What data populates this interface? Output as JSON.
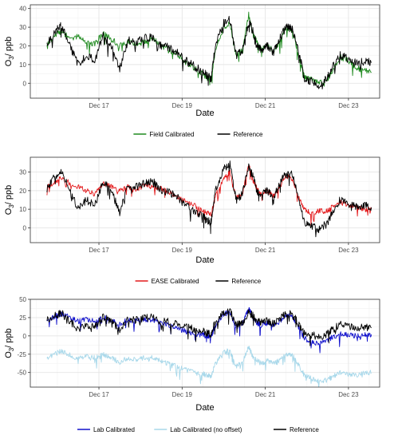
{
  "chart_data": [
    {
      "type": "line",
      "title": "",
      "xlabel": "Date",
      "ylabel": "O3/ ppb",
      "ylabel_parts": {
        "main": "O",
        "sub": "3",
        "rest": "/ ppb"
      },
      "x_ticks": [
        {
          "day": 17,
          "label": "Dec 17"
        },
        {
          "day": 19,
          "label": "Dec 19"
        },
        {
          "day": 21,
          "label": "Dec 21"
        },
        {
          "day": 23,
          "label": "Dec 23"
        }
      ],
      "xlim": [
        15.35,
        23.75
      ],
      "ylim": [
        -8,
        42
      ],
      "y_ticks": [
        0,
        10,
        20,
        30,
        40
      ],
      "grid": true,
      "legend": "bottom-center",
      "series": [
        {
          "name": "Field Calibrated",
          "color": "#1f8a1f",
          "x": [
            15.75,
            15.95,
            16.1,
            16.3,
            16.5,
            16.7,
            16.9,
            17.1,
            17.3,
            17.5,
            17.7,
            17.9,
            18.1,
            18.3,
            18.5,
            18.7,
            18.9,
            19.1,
            19.3,
            19.5,
            19.6,
            19.7,
            19.8,
            20.0,
            20.15,
            20.3,
            20.45,
            20.6,
            20.7,
            20.8,
            20.9,
            21.05,
            21.2,
            21.35,
            21.5,
            21.65,
            21.8,
            21.95,
            22.1,
            22.3,
            22.5,
            22.6,
            22.8,
            23.0,
            23.2,
            23.4,
            23.55
          ],
          "y": [
            20,
            26,
            28,
            24,
            25,
            22,
            21,
            27,
            24,
            20,
            22,
            21,
            22,
            24,
            20,
            18,
            15,
            11,
            8,
            5,
            3,
            2,
            18,
            30,
            32,
            14,
            18,
            37,
            26,
            22,
            18,
            20,
            17,
            22,
            30,
            28,
            15,
            3,
            2,
            0,
            2,
            6,
            14,
            12,
            8,
            7,
            6
          ]
        },
        {
          "name": "Reference",
          "color": "#000000",
          "x": [
            15.75,
            15.95,
            16.1,
            16.3,
            16.5,
            16.7,
            16.9,
            17.1,
            17.3,
            17.5,
            17.7,
            17.9,
            18.1,
            18.3,
            18.5,
            18.7,
            18.9,
            19.1,
            19.3,
            19.5,
            19.6,
            19.7,
            19.8,
            20.0,
            20.15,
            20.3,
            20.45,
            20.6,
            20.7,
            20.8,
            20.9,
            21.05,
            21.2,
            21.35,
            21.5,
            21.65,
            21.8,
            21.95,
            22.1,
            22.3,
            22.5,
            22.6,
            22.8,
            23.0,
            23.2,
            23.4,
            23.55
          ],
          "y": [
            21,
            28,
            31,
            20,
            10,
            15,
            12,
            25,
            20,
            8,
            23,
            22,
            24,
            25,
            20,
            19,
            16,
            12,
            9,
            6,
            4,
            3,
            20,
            32,
            34,
            15,
            18,
            33,
            28,
            20,
            18,
            20,
            16,
            24,
            30,
            29,
            17,
            2,
            1,
            -1,
            3,
            8,
            15,
            13,
            11,
            12,
            11
          ]
        }
      ]
    },
    {
      "type": "line",
      "title": "",
      "xlabel": "Date",
      "ylabel": "O3/ ppb",
      "ylabel_parts": {
        "main": "O",
        "sub": "3",
        "rest": "/ ppb"
      },
      "x_ticks": [
        {
          "day": 17,
          "label": "Dec 17"
        },
        {
          "day": 19,
          "label": "Dec 19"
        },
        {
          "day": 21,
          "label": "Dec 21"
        },
        {
          "day": 23,
          "label": "Dec 23"
        }
      ],
      "xlim": [
        15.35,
        23.75
      ],
      "ylim": [
        -8,
        38
      ],
      "y_ticks": [
        0,
        10,
        20,
        30
      ],
      "grid": true,
      "legend": "bottom-center",
      "series": [
        {
          "name": "EASE Calibrated",
          "color": "#e31a1c",
          "x": [
            15.75,
            15.95,
            16.1,
            16.3,
            16.5,
            16.7,
            16.9,
            17.1,
            17.3,
            17.5,
            17.7,
            17.9,
            18.1,
            18.3,
            18.5,
            18.7,
            18.9,
            19.1,
            19.3,
            19.5,
            19.6,
            19.7,
            19.8,
            20.0,
            20.15,
            20.3,
            20.45,
            20.6,
            20.7,
            20.8,
            20.9,
            21.05,
            21.2,
            21.35,
            21.5,
            21.65,
            21.8,
            21.95,
            22.1,
            22.3,
            22.5,
            22.6,
            22.8,
            23.0,
            23.2,
            23.4,
            23.55
          ],
          "y": [
            22,
            25,
            27,
            24,
            22,
            20,
            18,
            24,
            22,
            20,
            22,
            20,
            23,
            22,
            21,
            19,
            16,
            14,
            12,
            9,
            8,
            7,
            17,
            27,
            30,
            16,
            18,
            34,
            26,
            21,
            18,
            20,
            17,
            22,
            28,
            26,
            16,
            10,
            8,
            9,
            9,
            11,
            14,
            12,
            11,
            10,
            10
          ]
        },
        {
          "name": "Reference",
          "color": "#000000",
          "x": [
            15.75,
            15.95,
            16.1,
            16.3,
            16.5,
            16.7,
            16.9,
            17.1,
            17.3,
            17.5,
            17.7,
            17.9,
            18.1,
            18.3,
            18.5,
            18.7,
            18.9,
            19.1,
            19.3,
            19.5,
            19.6,
            19.7,
            19.8,
            20.0,
            20.15,
            20.3,
            20.45,
            20.6,
            20.7,
            20.8,
            20.9,
            21.05,
            21.2,
            21.35,
            21.5,
            21.65,
            21.8,
            21.95,
            22.1,
            22.3,
            22.5,
            22.6,
            22.8,
            23.0,
            23.2,
            23.4,
            23.55
          ],
          "y": [
            21,
            28,
            31,
            20,
            10,
            15,
            12,
            25,
            20,
            8,
            23,
            22,
            24,
            25,
            20,
            19,
            16,
            12,
            9,
            6,
            4,
            3,
            20,
            32,
            34,
            15,
            18,
            33,
            28,
            20,
            18,
            20,
            16,
            24,
            30,
            29,
            17,
            2,
            1,
            -1,
            3,
            8,
            15,
            13,
            11,
            12,
            11
          ]
        }
      ]
    },
    {
      "type": "line",
      "title": "",
      "xlabel": "Date",
      "ylabel": "O3/ ppb",
      "ylabel_parts": {
        "main": "O",
        "sub": "3",
        "rest": "/ ppb"
      },
      "x_ticks": [
        {
          "day": 17,
          "label": "Dec 17"
        },
        {
          "day": 19,
          "label": "Dec 19"
        },
        {
          "day": 21,
          "label": "Dec 21"
        },
        {
          "day": 23,
          "label": "Dec 23"
        }
      ],
      "xlim": [
        15.35,
        23.75
      ],
      "ylim": [
        -70,
        50
      ],
      "y_ticks": [
        -50,
        -25,
        0,
        25,
        50
      ],
      "grid": true,
      "legend": "bottom-center",
      "series": [
        {
          "name": "Lab Calibrated",
          "color": "#1010cc",
          "x": [
            15.75,
            15.95,
            16.1,
            16.3,
            16.5,
            16.7,
            16.9,
            17.1,
            17.3,
            17.5,
            17.7,
            17.9,
            18.1,
            18.3,
            18.5,
            18.7,
            18.9,
            19.1,
            19.3,
            19.5,
            19.6,
            19.7,
            19.8,
            20.0,
            20.15,
            20.3,
            20.45,
            20.6,
            20.7,
            20.8,
            20.9,
            21.05,
            21.2,
            21.35,
            21.5,
            21.65,
            21.8,
            21.95,
            22.1,
            22.3,
            22.5,
            22.6,
            22.8,
            23.0,
            23.2,
            23.4,
            23.55
          ],
          "y": [
            22,
            27,
            30,
            25,
            20,
            22,
            20,
            26,
            22,
            16,
            22,
            21,
            22,
            22,
            18,
            14,
            10,
            6,
            3,
            1,
            0,
            -1,
            14,
            30,
            32,
            12,
            16,
            38,
            25,
            18,
            14,
            18,
            14,
            20,
            28,
            26,
            12,
            -4,
            -8,
            -10,
            -6,
            -2,
            3,
            1,
            0,
            2,
            2
          ]
        },
        {
          "name": "Lab Calibrated (no offset)",
          "color": "#a8d8ea",
          "x": [
            15.75,
            15.95,
            16.1,
            16.3,
            16.5,
            16.7,
            16.9,
            17.1,
            17.3,
            17.5,
            17.7,
            17.9,
            18.1,
            18.3,
            18.5,
            18.7,
            18.9,
            19.1,
            19.3,
            19.5,
            19.6,
            19.7,
            19.8,
            20.0,
            20.15,
            20.3,
            20.45,
            20.6,
            20.7,
            20.8,
            20.9,
            21.05,
            21.2,
            21.35,
            21.5,
            21.65,
            21.8,
            21.95,
            22.1,
            22.3,
            22.5,
            22.6,
            22.8,
            23.0,
            23.2,
            23.4,
            23.55
          ],
          "y": [
            -30,
            -24,
            -21,
            -26,
            -32,
            -28,
            -30,
            -25,
            -30,
            -36,
            -30,
            -32,
            -30,
            -30,
            -35,
            -38,
            -42,
            -47,
            -50,
            -52,
            -54,
            -55,
            -38,
            -22,
            -20,
            -42,
            -36,
            -15,
            -28,
            -34,
            -38,
            -34,
            -38,
            -32,
            -24,
            -26,
            -40,
            -55,
            -58,
            -62,
            -60,
            -56,
            -50,
            -52,
            -53,
            -50,
            -50
          ]
        },
        {
          "name": "Reference",
          "color": "#000000",
          "x": [
            15.75,
            15.95,
            16.1,
            16.3,
            16.5,
            16.7,
            16.9,
            17.1,
            17.3,
            17.5,
            17.7,
            17.9,
            18.1,
            18.3,
            18.5,
            18.7,
            18.9,
            19.1,
            19.3,
            19.5,
            19.6,
            19.7,
            19.8,
            20.0,
            20.15,
            20.3,
            20.45,
            20.6,
            20.7,
            20.8,
            20.9,
            21.05,
            21.2,
            21.35,
            21.5,
            21.65,
            21.8,
            21.95,
            22.1,
            22.3,
            22.5,
            22.6,
            22.8,
            23.0,
            23.2,
            23.4,
            23.55
          ],
          "y": [
            21,
            28,
            31,
            20,
            10,
            15,
            12,
            25,
            20,
            8,
            23,
            22,
            24,
            25,
            20,
            19,
            16,
            12,
            9,
            6,
            4,
            3,
            20,
            32,
            34,
            15,
            18,
            33,
            28,
            20,
            18,
            20,
            16,
            24,
            30,
            29,
            17,
            2,
            1,
            -1,
            3,
            8,
            15,
            13,
            11,
            12,
            11
          ]
        }
      ]
    }
  ]
}
